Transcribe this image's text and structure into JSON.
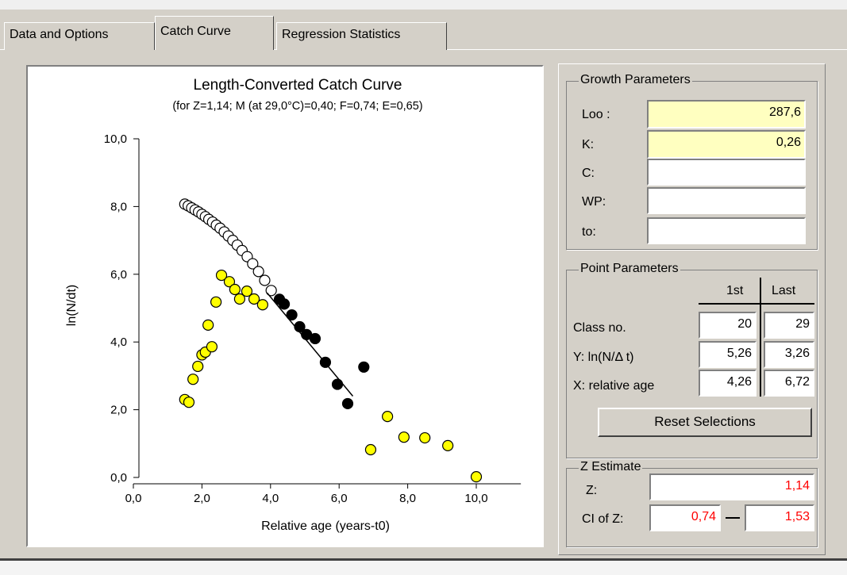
{
  "tabs": [
    "Data and Options",
    "Catch Curve",
    "Regression Statistics"
  ],
  "chart_data": {
    "type": "scatter",
    "title": "Length-Converted Catch Curve",
    "subtitle": "(for Z=1,14; M (at 29,0°C)=0,40; F=0,74; E=0,65)",
    "x_label": "Relative age (years-t0)",
    "y_label": "ln(N/dt)",
    "xlim": [
      0,
      11.3
    ],
    "ylim": [
      0,
      10
    ],
    "xticks": [
      {
        "value": 0,
        "label": "0,0"
      },
      {
        "value": 2,
        "label": "2,0"
      },
      {
        "value": 4,
        "label": "4,0"
      },
      {
        "value": 6,
        "label": "6,0"
      },
      {
        "value": 8,
        "label": "8,0"
      },
      {
        "value": 10,
        "label": "10,0"
      }
    ],
    "yticks": [
      {
        "value": 0,
        "label": "0,0"
      },
      {
        "value": 2,
        "label": "2,0"
      },
      {
        "value": 4,
        "label": "4,0"
      },
      {
        "value": 6,
        "label": "6,0"
      },
      {
        "value": 8,
        "label": "8,0"
      },
      {
        "value": 10,
        "label": "10,0"
      }
    ],
    "series": [
      {
        "marker": "circle",
        "color": "#ffff00",
        "x": [
          1.5,
          1.62,
          1.74,
          1.88,
          2.0,
          2.1,
          2.18,
          2.29,
          2.41,
          2.57,
          2.8,
          2.96,
          3.1,
          3.31,
          3.52,
          3.77,
          6.92,
          7.41,
          7.89,
          8.5,
          9.17,
          10.0
        ],
        "values": [
          2.3,
          2.22,
          2.9,
          3.28,
          3.62,
          3.7,
          4.5,
          3.86,
          5.18,
          5.97,
          5.78,
          5.55,
          5.27,
          5.5,
          5.27,
          5.1,
          0.82,
          1.8,
          1.19,
          1.17,
          0.94,
          0.02
        ]
      },
      {
        "marker": "circle",
        "color": "#ffffff",
        "x": [
          1.5,
          1.6,
          1.7,
          1.8,
          1.9,
          2.0,
          2.1,
          2.2,
          2.31,
          2.42,
          2.53,
          2.65,
          2.77,
          2.9,
          3.03,
          3.17,
          3.32,
          3.48,
          3.65,
          3.83,
          4.02
        ],
        "values": [
          8.07,
          8.02,
          7.96,
          7.9,
          7.84,
          7.77,
          7.7,
          7.62,
          7.54,
          7.45,
          7.36,
          7.25,
          7.13,
          7.0,
          6.86,
          6.7,
          6.52,
          6.31,
          6.08,
          5.82,
          5.52
        ]
      },
      {
        "marker": "circle",
        "color": "#000000",
        "x": [
          4.26,
          4.4,
          4.62,
          4.85,
          5.05,
          5.3,
          5.6,
          5.95,
          6.25,
          6.72
        ],
        "values": [
          5.26,
          5.12,
          4.8,
          4.45,
          4.22,
          4.1,
          3.4,
          2.75,
          2.18,
          3.26
        ]
      },
      {
        "marker": "line",
        "color": "#000000",
        "x": [
          3.9,
          6.4
        ],
        "values": [
          5.45,
          2.4
        ]
      }
    ]
  },
  "growth_parameters": {
    "title": "Growth Parameters",
    "fields": [
      {
        "label": "Loo :",
        "value": "287,6"
      },
      {
        "label": "K:",
        "value": "0,26"
      },
      {
        "label": "C:"
      },
      {
        "label": "WP:"
      },
      {
        "label": "to:"
      }
    ]
  },
  "point_parameters": {
    "title": "Point Parameters",
    "columns": [
      "1st",
      "Last"
    ],
    "rows": [
      {
        "label": "Class no.",
        "values": [
          "20",
          "29"
        ]
      },
      {
        "label": "Y: ln(N/Δ t)",
        "values": [
          "5,26",
          "3,26"
        ]
      },
      {
        "label": "X: relative age",
        "values": [
          "4,26",
          "6,72"
        ]
      }
    ]
  },
  "reset_button": "Reset Selections",
  "z_estimate": {
    "title": "Z Estimate",
    "z_label": "Z:",
    "z": "1,14",
    "ci_label": "CI of Z:",
    "ci_low": "0,74",
    "ci_high": "1,53"
  }
}
